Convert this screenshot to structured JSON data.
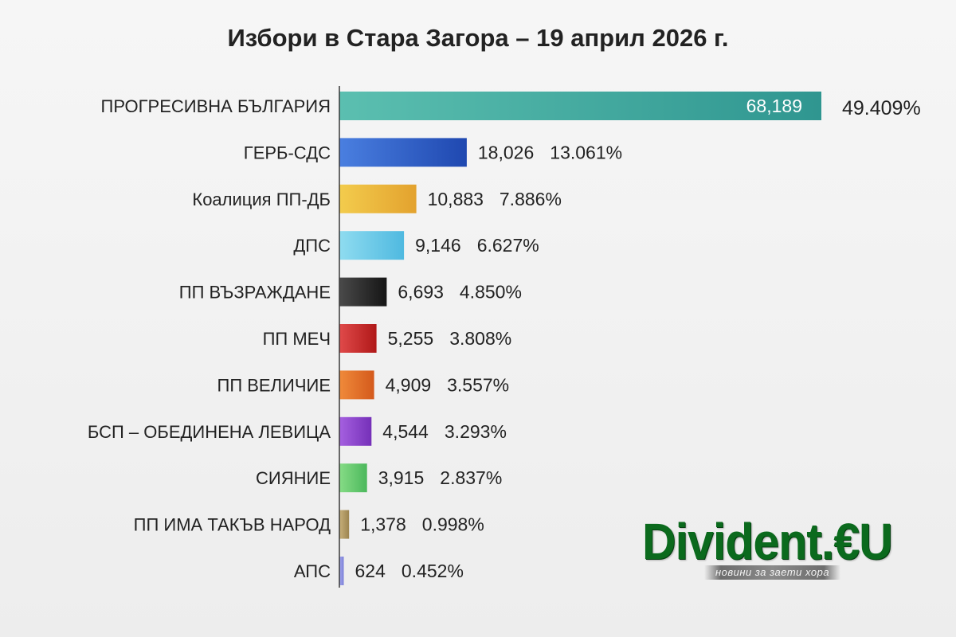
{
  "chart_data": {
    "type": "bar",
    "orientation": "horizontal",
    "title": "Избори в Стара Загора – 19 април 2026 г.",
    "xlabel": "",
    "ylabel": "",
    "grid": false,
    "legend": "none",
    "categories": [
      "ПРОГРЕСИВНА БЪЛГАРИЯ",
      "ГЕРБ-СДС",
      "Коалиция ПП-ДБ",
      "ДПС",
      "ПП ВЪЗРАЖДАНЕ",
      "ПП МЕЧ",
      "ПП ВЕЛИЧИЕ",
      "БСП – ОБЕДИНЕНА ЛЕВИЦА",
      "СИЯНИЕ",
      "ПП ИМА ТАКЪВ НАРОД",
      "АПС"
    ],
    "values": [
      68189,
      18026,
      10883,
      9146,
      6693,
      5255,
      4909,
      4544,
      3915,
      1378,
      624
    ],
    "value_labels": [
      "68,189",
      "18,026",
      "10,883",
      "9,146",
      "6,693",
      "5,255",
      "4,909",
      "4,544",
      "3,915",
      "1,378",
      "624"
    ],
    "percent_labels": [
      "49.409%",
      "13.061%",
      "7.886%",
      "6.627%",
      "4.850%",
      "3.808%",
      "3.557%",
      "3.293%",
      "2.837%",
      "0.998%",
      "0.452%"
    ],
    "bar_colors": [
      [
        "#5bbfb0",
        "#2f9690"
      ],
      [
        "#4a7fe0",
        "#1f48b0"
      ],
      [
        "#f3cc4d",
        "#e3a22e"
      ],
      [
        "#8fdcf0",
        "#4fb9e0"
      ],
      [
        "#4a4a4a",
        "#151515"
      ],
      [
        "#e04a4a",
        "#b01818"
      ],
      [
        "#f08a3a",
        "#d45a1c"
      ],
      [
        "#a560e0",
        "#7530b8"
      ],
      [
        "#86dc86",
        "#4cb85c"
      ],
      [
        "#c8b07a",
        "#9c8450"
      ],
      [
        "#a4a8ee",
        "#7c80d8"
      ]
    ]
  },
  "logo": {
    "text": "Divident.€U",
    "tagline": "новини за заети хора",
    "color": "#0b6a1d"
  }
}
